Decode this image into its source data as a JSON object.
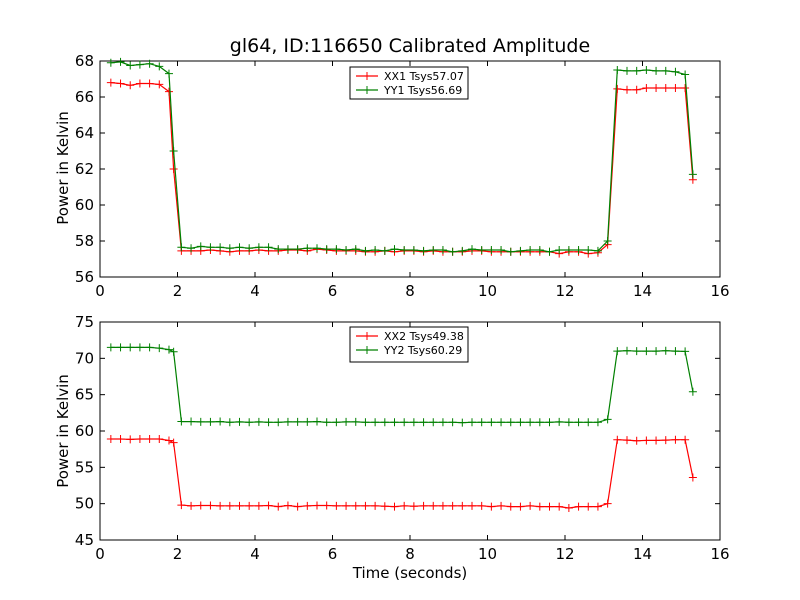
{
  "chart_data": [
    {
      "type": "line",
      "title": "gl64, ID:116650 Calibrated Amplitude",
      "xlabel": "",
      "ylabel": "Power in Kelvin",
      "xlim": [
        0,
        16
      ],
      "ylim": [
        56,
        68
      ],
      "xticks": [
        "0",
        "2",
        "4",
        "6",
        "8",
        "10",
        "12",
        "14",
        "16"
      ],
      "yticks": [
        "56",
        "58",
        "60",
        "62",
        "64",
        "66",
        "68"
      ],
      "grid": false,
      "legend_position": "top-center",
      "x": [
        0.28,
        0.53,
        0.78,
        1.03,
        1.28,
        1.53,
        1.78,
        1.9,
        2.1,
        2.35,
        2.6,
        2.85,
        3.1,
        3.35,
        3.6,
        3.85,
        4.1,
        4.35,
        4.6,
        4.85,
        5.1,
        5.35,
        5.6,
        5.85,
        6.1,
        6.35,
        6.6,
        6.85,
        7.1,
        7.35,
        7.6,
        7.85,
        8.1,
        8.35,
        8.6,
        8.85,
        9.1,
        9.35,
        9.6,
        9.85,
        10.1,
        10.35,
        10.6,
        10.85,
        11.1,
        11.35,
        11.6,
        11.85,
        12.1,
        12.35,
        12.6,
        12.85,
        13.1,
        13.35,
        13.6,
        13.85,
        14.1,
        14.35,
        14.6,
        14.85,
        15.1,
        15.3
      ],
      "series": [
        {
          "name": "XX1 Tsys57.07",
          "color": "#ff0000",
          "values": [
            66.8,
            66.75,
            66.65,
            66.75,
            66.75,
            66.7,
            66.3,
            62,
            57.45,
            57.45,
            57.45,
            57.5,
            57.45,
            57.4,
            57.45,
            57.45,
            57.5,
            57.45,
            57.45,
            57.5,
            57.5,
            57.45,
            57.55,
            57.5,
            57.45,
            57.45,
            57.45,
            57.4,
            57.4,
            57.45,
            57.4,
            57.45,
            57.45,
            57.4,
            57.45,
            57.4,
            57.4,
            57.4,
            57.45,
            57.45,
            57.4,
            57.4,
            57.4,
            57.4,
            57.4,
            57.4,
            57.4,
            57.3,
            57.4,
            57.4,
            57.3,
            57.35,
            57.8,
            66.45,
            66.4,
            66.4,
            66.5,
            66.5,
            66.5,
            66.5,
            66.5,
            61.4
          ]
        },
        {
          "name": "YY1 Tsys56.69",
          "color": "#008000",
          "values": [
            67.9,
            67.95,
            67.75,
            67.8,
            67.85,
            67.7,
            67.3,
            63,
            57.65,
            57.6,
            57.7,
            57.65,
            57.65,
            57.6,
            57.65,
            57.6,
            57.65,
            57.65,
            57.55,
            57.55,
            57.55,
            57.6,
            57.6,
            57.55,
            57.55,
            57.5,
            57.55,
            57.45,
            57.5,
            57.45,
            57.55,
            57.5,
            57.5,
            57.45,
            57.5,
            57.5,
            57.4,
            57.45,
            57.55,
            57.5,
            57.5,
            57.5,
            57.4,
            57.45,
            57.5,
            57.5,
            57.4,
            57.5,
            57.5,
            57.5,
            57.5,
            57.45,
            58.0,
            67.5,
            67.45,
            67.45,
            67.5,
            67.45,
            67.45,
            67.4,
            67.25,
            61.7
          ]
        }
      ]
    },
    {
      "type": "line",
      "title": "",
      "xlabel": "Time (seconds)",
      "ylabel": "Power in Kelvin",
      "xlim": [
        0,
        16
      ],
      "ylim": [
        45,
        75
      ],
      "xticks": [
        "0",
        "2",
        "4",
        "6",
        "8",
        "10",
        "12",
        "14",
        "16"
      ],
      "yticks": [
        "45",
        "50",
        "55",
        "60",
        "65",
        "70",
        "75"
      ],
      "grid": false,
      "legend_position": "top-center",
      "x": [
        0.28,
        0.53,
        0.78,
        1.03,
        1.28,
        1.53,
        1.78,
        1.9,
        2.1,
        2.35,
        2.6,
        2.85,
        3.1,
        3.35,
        3.6,
        3.85,
        4.1,
        4.35,
        4.6,
        4.85,
        5.1,
        5.35,
        5.6,
        5.85,
        6.1,
        6.35,
        6.6,
        6.85,
        7.1,
        7.35,
        7.6,
        7.85,
        8.1,
        8.35,
        8.6,
        8.85,
        9.1,
        9.35,
        9.6,
        9.85,
        10.1,
        10.35,
        10.6,
        10.85,
        11.1,
        11.35,
        11.6,
        11.85,
        12.1,
        12.35,
        12.6,
        12.85,
        13.1,
        13.35,
        13.6,
        13.85,
        14.1,
        14.35,
        14.6,
        14.85,
        15.1,
        15.3
      ],
      "series": [
        {
          "name": "XX2 Tsys49.38",
          "color": "#ff0000",
          "values": [
            58.9,
            58.9,
            58.85,
            58.9,
            58.9,
            58.9,
            58.7,
            58.4,
            49.8,
            49.7,
            49.75,
            49.75,
            49.7,
            49.7,
            49.7,
            49.7,
            49.7,
            49.75,
            49.6,
            49.75,
            49.6,
            49.7,
            49.75,
            49.75,
            49.7,
            49.7,
            49.7,
            49.7,
            49.7,
            49.65,
            49.6,
            49.7,
            49.65,
            49.7,
            49.7,
            49.7,
            49.7,
            49.7,
            49.7,
            49.7,
            49.6,
            49.7,
            49.6,
            49.6,
            49.7,
            49.6,
            49.6,
            49.6,
            49.4,
            49.6,
            49.6,
            49.6,
            50.0,
            58.8,
            58.75,
            58.65,
            58.7,
            58.7,
            58.75,
            58.8,
            58.8,
            53.6
          ]
        },
        {
          "name": "YY2 Tsys60.29",
          "color": "#008000",
          "values": [
            71.5,
            71.5,
            71.5,
            71.5,
            71.5,
            71.4,
            71.2,
            70.9,
            61.3,
            61.3,
            61.25,
            61.25,
            61.3,
            61.2,
            61.25,
            61.2,
            61.25,
            61.2,
            61.2,
            61.25,
            61.25,
            61.25,
            61.3,
            61.2,
            61.2,
            61.25,
            61.25,
            61.2,
            61.2,
            61.2,
            61.2,
            61.2,
            61.2,
            61.2,
            61.2,
            61.2,
            61.2,
            61.15,
            61.2,
            61.2,
            61.2,
            61.2,
            61.2,
            61.2,
            61.2,
            61.2,
            61.2,
            61.25,
            61.2,
            61.2,
            61.2,
            61.2,
            61.6,
            71.0,
            71.05,
            71.0,
            71.0,
            71.0,
            71.05,
            71.0,
            70.95,
            65.4
          ]
        }
      ]
    }
  ]
}
